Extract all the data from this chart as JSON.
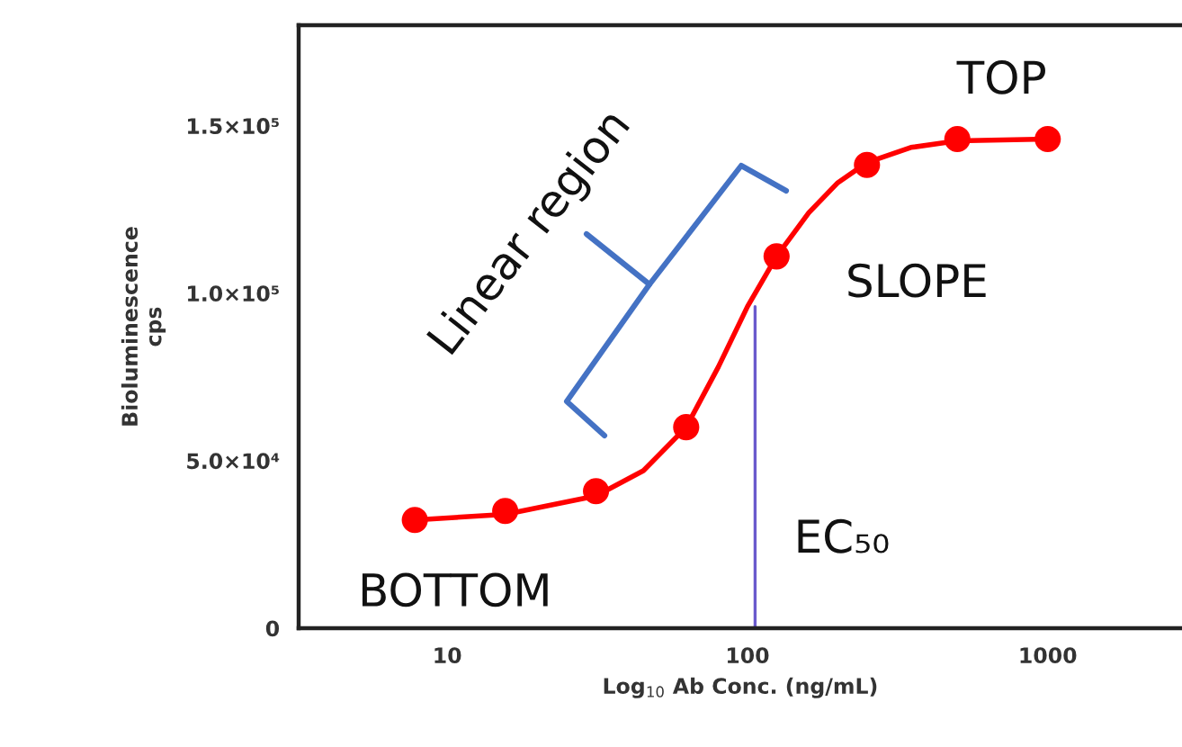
{
  "chart_data": {
    "type": "scatter",
    "xlabel": "Log$_{10}$ Ab Conc. (ng/mL)",
    "ylabel": "Bioluminescence\ncps",
    "log": "x",
    "xlim": [
      3.2,
      2800
    ],
    "xticks": [
      10,
      100,
      1000
    ],
    "ylim": [
      0,
      180000
    ],
    "yticks": [
      {
        "value": 0,
        "label": "0"
      },
      {
        "value": 50000,
        "label": "5.0×10⁴"
      },
      {
        "value": 100000,
        "label": "1.0×10⁵"
      },
      {
        "value": 150000,
        "label": "1.5×10⁵"
      }
    ],
    "grid": false,
    "legend": false,
    "series": [
      {
        "type": "line",
        "color": "#ff0000",
        "x": [
          7.8,
          15.6,
          31.3,
          45,
          62.5,
          80,
          100,
          125,
          160,
          200,
          250,
          350,
          500,
          1000
        ],
        "values": [
          32300,
          34000,
          39500,
          47000,
          60000,
          78000,
          96000,
          111000,
          124000,
          133000,
          139000,
          143500,
          145500,
          146000
        ]
      },
      {
        "marker": "circle",
        "color": "#ff0000",
        "x": [
          7.8,
          15.6,
          31.3,
          62.5,
          125,
          250,
          500,
          1000
        ],
        "values": [
          32300,
          35000,
          40900,
          60000,
          111000,
          138300,
          146000,
          146000
        ]
      },
      {
        "type": "line",
        "color": "#6a5acd",
        "x": [
          106,
          106
        ],
        "values": [
          0,
          96000
        ]
      }
    ],
    "annotations": [
      "Linear region",
      "TOP",
      "SLOPE",
      "BOTTOM",
      "EC₅₀"
    ]
  }
}
